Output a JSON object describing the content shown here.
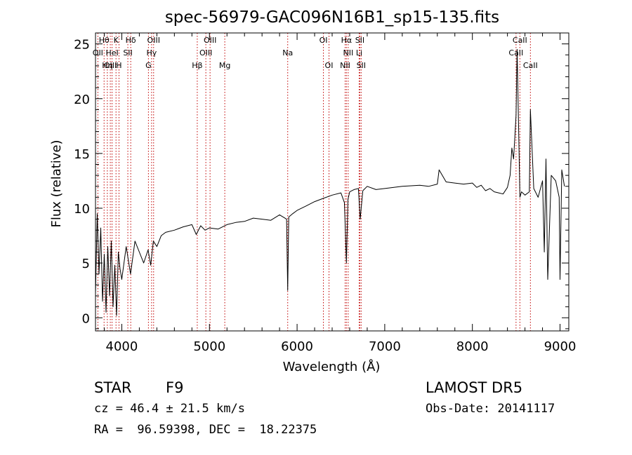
{
  "chart_data": {
    "type": "line",
    "title": "spec-56979-GAC096N16B1_sp15-135.fits",
    "xlabel": "Wavelength (Å)",
    "ylabel": "Flux (relative)",
    "xlim": [
      3700,
      9100
    ],
    "ylim": [
      -1.2,
      26
    ],
    "xticks": [
      4000,
      5000,
      6000,
      7000,
      8000,
      9000
    ],
    "yticks": [
      0,
      5,
      10,
      15,
      20,
      25
    ],
    "grid": false,
    "line_color": "#000000",
    "marker_color": "#c00000",
    "spectral_lines": [
      {
        "label": "Hθ",
        "wavelength": 3798,
        "row": 0
      },
      {
        "label": "K",
        "wavelength": 3934,
        "row": 0
      },
      {
        "label": "Hδ",
        "wavelength": 4102,
        "row": 0
      },
      {
        "label": "OIII",
        "wavelength": 4363,
        "row": 0
      },
      {
        "label": "OIII",
        "wavelength": 5007,
        "row": 0
      },
      {
        "label": "OI",
        "wavelength": 6300,
        "row": 0
      },
      {
        "label": "Hα",
        "wavelength": 6563,
        "row": 0
      },
      {
        "label": "SII",
        "wavelength": 6716,
        "row": 0
      },
      {
        "label": "CaII",
        "wavelength": 8542,
        "row": 0
      },
      {
        "label": "OII",
        "wavelength": 3727,
        "row": 1
      },
      {
        "label": "HeI",
        "wavelength": 3889,
        "row": 1
      },
      {
        "label": "SII",
        "wavelength": 4069,
        "row": 1
      },
      {
        "label": "Hγ",
        "wavelength": 4340,
        "row": 1
      },
      {
        "label": "OIII",
        "wavelength": 4959,
        "row": 1
      },
      {
        "label": "Na",
        "wavelength": 5893,
        "row": 1
      },
      {
        "label": "NII",
        "wavelength": 6583,
        "row": 1
      },
      {
        "label": "Li",
        "wavelength": 6708,
        "row": 1
      },
      {
        "label": "CaII",
        "wavelength": 8498,
        "row": 1
      },
      {
        "label": "OIII",
        "wavelength": 3869,
        "row": 2
      },
      {
        "label": "Hη",
        "wavelength": 3835,
        "row": 2
      },
      {
        "label": "H",
        "wavelength": 3968,
        "row": 2
      },
      {
        "label": "G",
        "wavelength": 4304,
        "row": 2
      },
      {
        "label": "Hβ",
        "wavelength": 4861,
        "row": 2
      },
      {
        "label": "Mg",
        "wavelength": 5175,
        "row": 2
      },
      {
        "label": "OI",
        "wavelength": 6364,
        "row": 2
      },
      {
        "label": "NII",
        "wavelength": 6548,
        "row": 2
      },
      {
        "label": "SII",
        "wavelength": 6731,
        "row": 2
      },
      {
        "label": "CaII",
        "wavelength": 8662,
        "row": 2
      }
    ],
    "series": [
      {
        "x": [
          3700,
          3720,
          3740,
          3760,
          3780,
          3800,
          3820,
          3840,
          3860,
          3880,
          3900,
          3920,
          3940,
          3960,
          3980,
          4000,
          4050,
          4100,
          4150,
          4200,
          4250,
          4300,
          4330,
          4360,
          4400,
          4450,
          4500,
          4600,
          4700,
          4800,
          4850,
          4900,
          4950,
          5000,
          5100,
          5200,
          5300,
          5400,
          5500,
          5600,
          5700,
          5800,
          5880,
          5893,
          5905,
          5950,
          6000,
          6100,
          6200,
          6300,
          6400,
          6500,
          6540,
          6563,
          6580,
          6600,
          6650,
          6700,
          6720,
          6750,
          6800,
          6900,
          7000,
          7200,
          7400,
          7500,
          7600,
          7620,
          7700,
          7800,
          7900,
          8000,
          8050,
          8100,
          8150,
          8200,
          8250,
          8300,
          8350,
          8400,
          8430,
          8450,
          8470,
          8498,
          8510,
          8542,
          8560,
          8600,
          8650,
          8662,
          8700,
          8750,
          8800,
          8820,
          8840,
          8860,
          8900,
          8950,
          8990,
          9000,
          9020,
          9050
        ],
        "y": [
          2.2,
          9.5,
          4.0,
          8.2,
          1.5,
          5.8,
          0.5,
          6.5,
          2.0,
          7.0,
          1.0,
          4.8,
          0.2,
          6.0,
          4.5,
          3.5,
          6.5,
          4.0,
          7.0,
          6.0,
          5.0,
          6.2,
          4.8,
          7.0,
          6.5,
          7.5,
          7.8,
          8.0,
          8.3,
          8.5,
          7.6,
          8.4,
          8.0,
          8.2,
          8.1,
          8.5,
          8.7,
          8.8,
          9.1,
          9.0,
          8.9,
          9.4,
          9.0,
          2.5,
          9.2,
          9.5,
          9.8,
          10.2,
          10.6,
          10.9,
          11.2,
          11.4,
          10.5,
          5.0,
          10.8,
          11.5,
          11.7,
          11.8,
          9.0,
          11.6,
          12.0,
          11.7,
          11.8,
          12.0,
          12.1,
          12.0,
          12.2,
          13.5,
          12.4,
          12.3,
          12.2,
          12.3,
          11.9,
          12.1,
          11.6,
          11.8,
          11.5,
          11.4,
          11.3,
          11.9,
          13.0,
          15.5,
          14.5,
          18.5,
          24.5,
          11.0,
          11.5,
          11.2,
          11.5,
          19.0,
          11.8,
          11.0,
          12.5,
          6.0,
          14.5,
          3.5,
          13.0,
          12.5,
          11.0,
          3.5,
          13.5,
          12.0
        ]
      }
    ]
  },
  "info": {
    "object_type": "STAR",
    "subclass": "F9",
    "survey": "LAMOST DR5",
    "redshift": "cz = 46.4 ± 21.5 km/s",
    "obs_date": "Obs-Date: 20141117",
    "coords": "RA =  96.59398, DEC =  18.22375"
  }
}
